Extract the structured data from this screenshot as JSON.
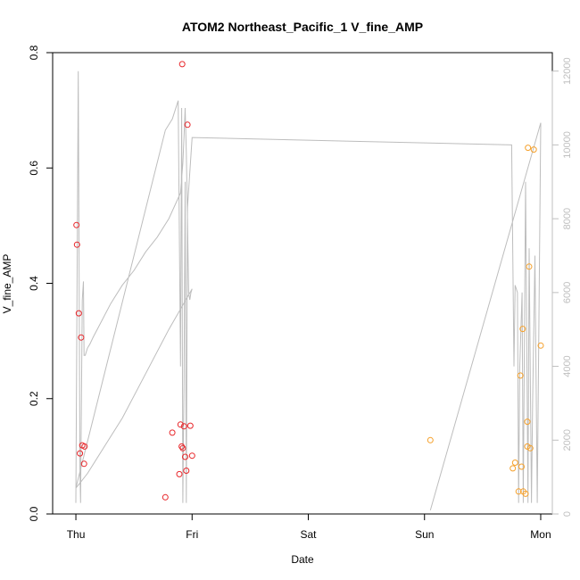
{
  "chart_data": {
    "type": "scatter",
    "title": "ATOM2 Northeast_Pacific_1 V_fine_AMP",
    "xlabel": "Date",
    "ylabel": "V_fine_AMP",
    "x_ticks": [
      "Thu",
      "Fri",
      "Sat",
      "Sun",
      "Mon"
    ],
    "xlim": [
      -0.2,
      4.1
    ],
    "ylim": [
      0,
      0.8
    ],
    "y_ticks": [
      "0.0",
      "0.2",
      "0.4",
      "0.6",
      "0.8"
    ],
    "y2_ticks": [
      "0",
      "2000",
      "4000",
      "6000",
      "8000",
      "10000",
      "12000"
    ],
    "y2lim": [
      0,
      12500
    ],
    "grid": false,
    "legend": "none",
    "colors": {
      "series_red": "#e8262a",
      "series_orange": "#f5a02a",
      "line_gray": "#bdbdbd",
      "axis": "#000000",
      "right_axis": "#bfbfbf"
    },
    "series": [
      {
        "color": "red",
        "x": [
          0.005,
          0.01,
          0.025,
          0.035,
          0.045,
          0.055,
          0.07,
          0.075,
          0.77,
          0.83,
          0.89,
          0.9,
          0.91,
          0.915,
          0.92,
          0.93,
          0.94,
          0.95,
          0.96,
          0.985,
          1.0
        ],
        "y": [
          0.501,
          0.467,
          0.348,
          0.105,
          0.306,
          0.119,
          0.087,
          0.117,
          0.029,
          0.141,
          0.069,
          0.155,
          0.117,
          0.78,
          0.114,
          0.152,
          0.099,
          0.075,
          0.675,
          0.153,
          0.101
        ]
      },
      {
        "color": "orange",
        "x": [
          3.05,
          3.76,
          3.78,
          3.81,
          3.825,
          3.835,
          3.845,
          3.85,
          3.87,
          3.885,
          3.885,
          3.89,
          3.9,
          3.91,
          3.94,
          4.0
        ],
        "y": [
          0.128,
          0.079,
          0.089,
          0.039,
          0.24,
          0.082,
          0.321,
          0.039,
          0.035,
          0.16,
          0.117,
          0.635,
          0.429,
          0.114,
          0.632,
          0.292
        ]
      }
    ],
    "secondary_line": {
      "axis": "right",
      "x": [
        0.0,
        0.02,
        0.035,
        0.04,
        0.055,
        0.065,
        0.07,
        0.08,
        0.1,
        0.12,
        0.15,
        0.2,
        0.3,
        0.4,
        0.5,
        0.6,
        0.7,
        0.8,
        0.9,
        0.92,
        0.93,
        0.94,
        0.95,
        0.96,
        0.97,
        0.98,
        0.99,
        1.0,
        0.8,
        0.6,
        0.4,
        0.2,
        0.1,
        0.05,
        0.0,
        0.77,
        0.83,
        0.88,
        0.9,
        0.91,
        0.92,
        0.93,
        0.94,
        0.95,
        0.96,
        1.0,
        3.75,
        3.77,
        3.78,
        3.8,
        3.81,
        3.82,
        3.84,
        3.85,
        3.87,
        3.89,
        3.9,
        3.92,
        3.93,
        3.95,
        3.97,
        4.0,
        3.05
      ],
      "y": [
        300,
        12000,
        1200,
        300,
        5800,
        6300,
        4300,
        4300,
        4500,
        4600,
        4800,
        5100,
        5700,
        6200,
        6600,
        7100,
        7500,
        8000,
        8700,
        9500,
        10200,
        11000,
        9800,
        8000,
        6000,
        5800,
        6000,
        6100,
        5000,
        3800,
        2600,
        1600,
        1100,
        900,
        700,
        10400,
        10700,
        11200,
        4000,
        11000,
        300,
        3500,
        9000,
        300,
        8300,
        10200,
        10000,
        4000,
        6200,
        6000,
        300,
        4000,
        6000,
        300,
        9000,
        300,
        7200,
        300,
        3000,
        7000,
        300,
        10600,
        100
      ]
    }
  }
}
